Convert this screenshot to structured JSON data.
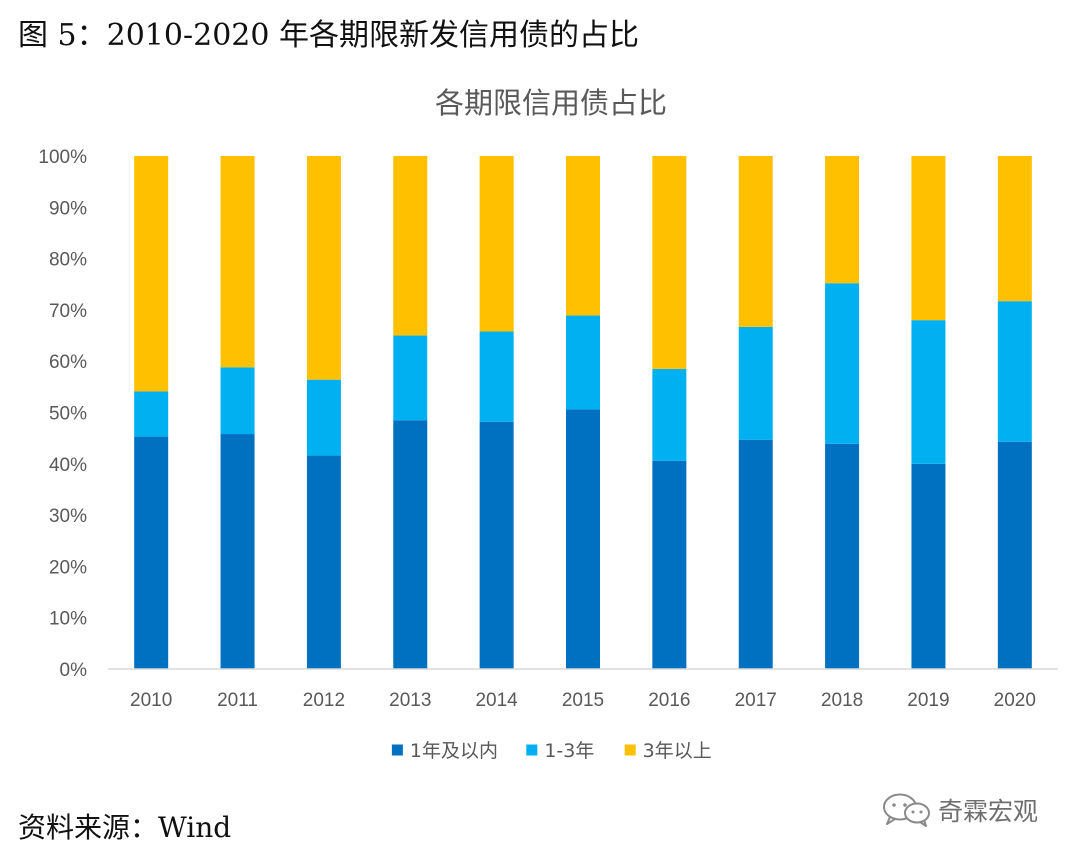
{
  "figure_caption": "图 5：2010-2020 年各期限新发信用债的占比",
  "source_note": "资料来源：Wind",
  "watermark": {
    "text": "奇霖宏观",
    "icon": "wechat-icon"
  },
  "colors": {
    "series_1y": "#0070C0",
    "series_1_3y": "#00B0F0",
    "series_3y_plus": "#FFC000",
    "axis_text": "#595959",
    "axis_line": "#D9D9D9"
  },
  "chart_data": {
    "type": "bar",
    "stacked": true,
    "title": "各期限信用债占比",
    "xlabel": "",
    "ylabel": "",
    "ylim": [
      0,
      100
    ],
    "y_ticks": [
      "0%",
      "10%",
      "20%",
      "30%",
      "40%",
      "50%",
      "60%",
      "70%",
      "80%",
      "90%",
      "100%"
    ],
    "grid": false,
    "legend_position": "bottom",
    "categories": [
      "2010",
      "2011",
      "2012",
      "2013",
      "2014",
      "2015",
      "2016",
      "2017",
      "2018",
      "2019",
      "2020"
    ],
    "series": [
      {
        "name": "1年及以内",
        "color": "#0070C0",
        "values": [
          45.3,
          45.8,
          41.6,
          48.5,
          48.2,
          50.6,
          40.6,
          44.7,
          43.9,
          40.0,
          44.3
        ]
      },
      {
        "name": "1-3年",
        "color": "#00B0F0",
        "values": [
          8.8,
          13.0,
          14.8,
          16.5,
          17.6,
          18.3,
          17.9,
          22.0,
          31.3,
          28.0,
          27.4
        ]
      },
      {
        "name": "3年以上",
        "color": "#FFC000",
        "values": [
          45.9,
          41.2,
          43.6,
          35.0,
          34.2,
          31.1,
          41.5,
          33.3,
          24.8,
          32.0,
          28.3
        ]
      }
    ]
  }
}
